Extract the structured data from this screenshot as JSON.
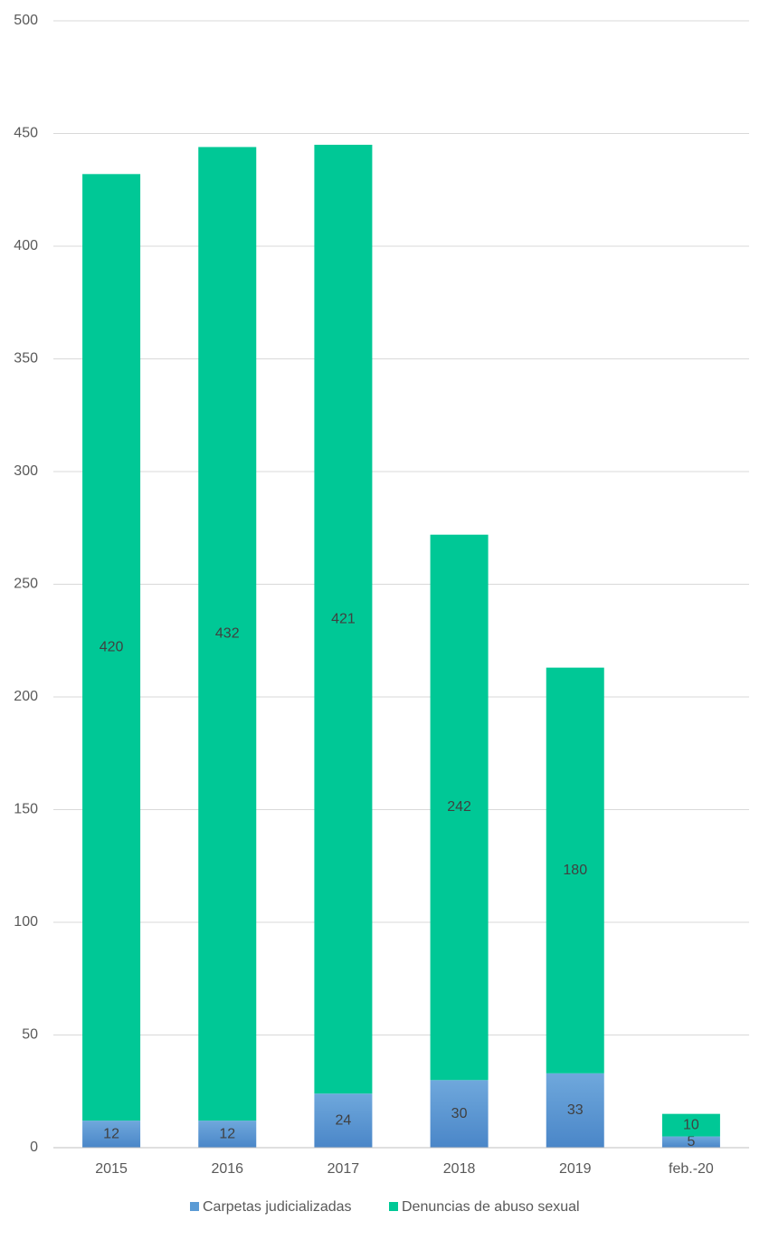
{
  "chart_data": {
    "type": "stacked-bar",
    "categories": [
      "2015",
      "2016",
      "2017",
      "2018",
      "2019",
      "feb.-20"
    ],
    "series": [
      {
        "name": "Carpetas judicializadas",
        "color": "#5b9bd5",
        "values": [
          12,
          12,
          24,
          30,
          33,
          5
        ]
      },
      {
        "name": "Denuncias de abuso sexual",
        "color": "#00c896",
        "values": [
          420,
          432,
          421,
          242,
          180,
          10
        ]
      }
    ],
    "ylim": [
      0,
      500
    ],
    "yticks": [
      0,
      50,
      100,
      150,
      200,
      250,
      300,
      350,
      400,
      450,
      500
    ],
    "grid": true,
    "legend": "bottom"
  }
}
